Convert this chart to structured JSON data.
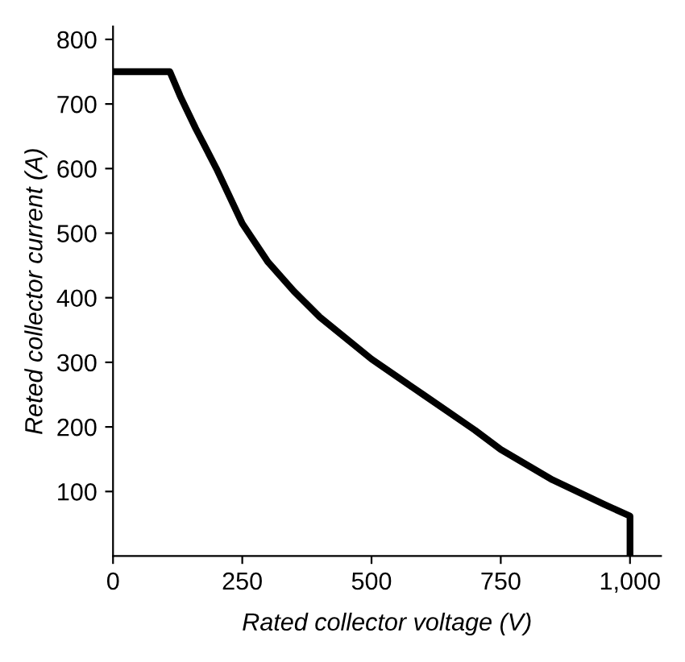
{
  "chart_data": {
    "type": "line",
    "xlabel": "Rated collector voltage (V)",
    "ylabel": "Reted collector current (A)",
    "x": [
      0,
      110,
      130,
      160,
      200,
      250,
      300,
      350,
      400,
      500,
      600,
      700,
      750,
      850,
      950,
      1000,
      1000
    ],
    "series": [
      {
        "color": "#000000",
        "values": [
          750,
          750,
          712,
          662,
          600,
          515,
          455,
          410,
          370,
          305,
          250,
          195,
          165,
          118,
          80,
          62,
          0
        ]
      }
    ],
    "xlim": [
      0,
      1060
    ],
    "ylim": [
      0,
      820
    ],
    "xticks": [
      0,
      250,
      500,
      750,
      {
        "value": 1000,
        "label": "1,000"
      }
    ],
    "yticks": [
      100,
      200,
      300,
      400,
      500,
      600,
      700,
      800
    ],
    "grid": false,
    "legend": false,
    "marker": "none",
    "line_style": "solid"
  }
}
